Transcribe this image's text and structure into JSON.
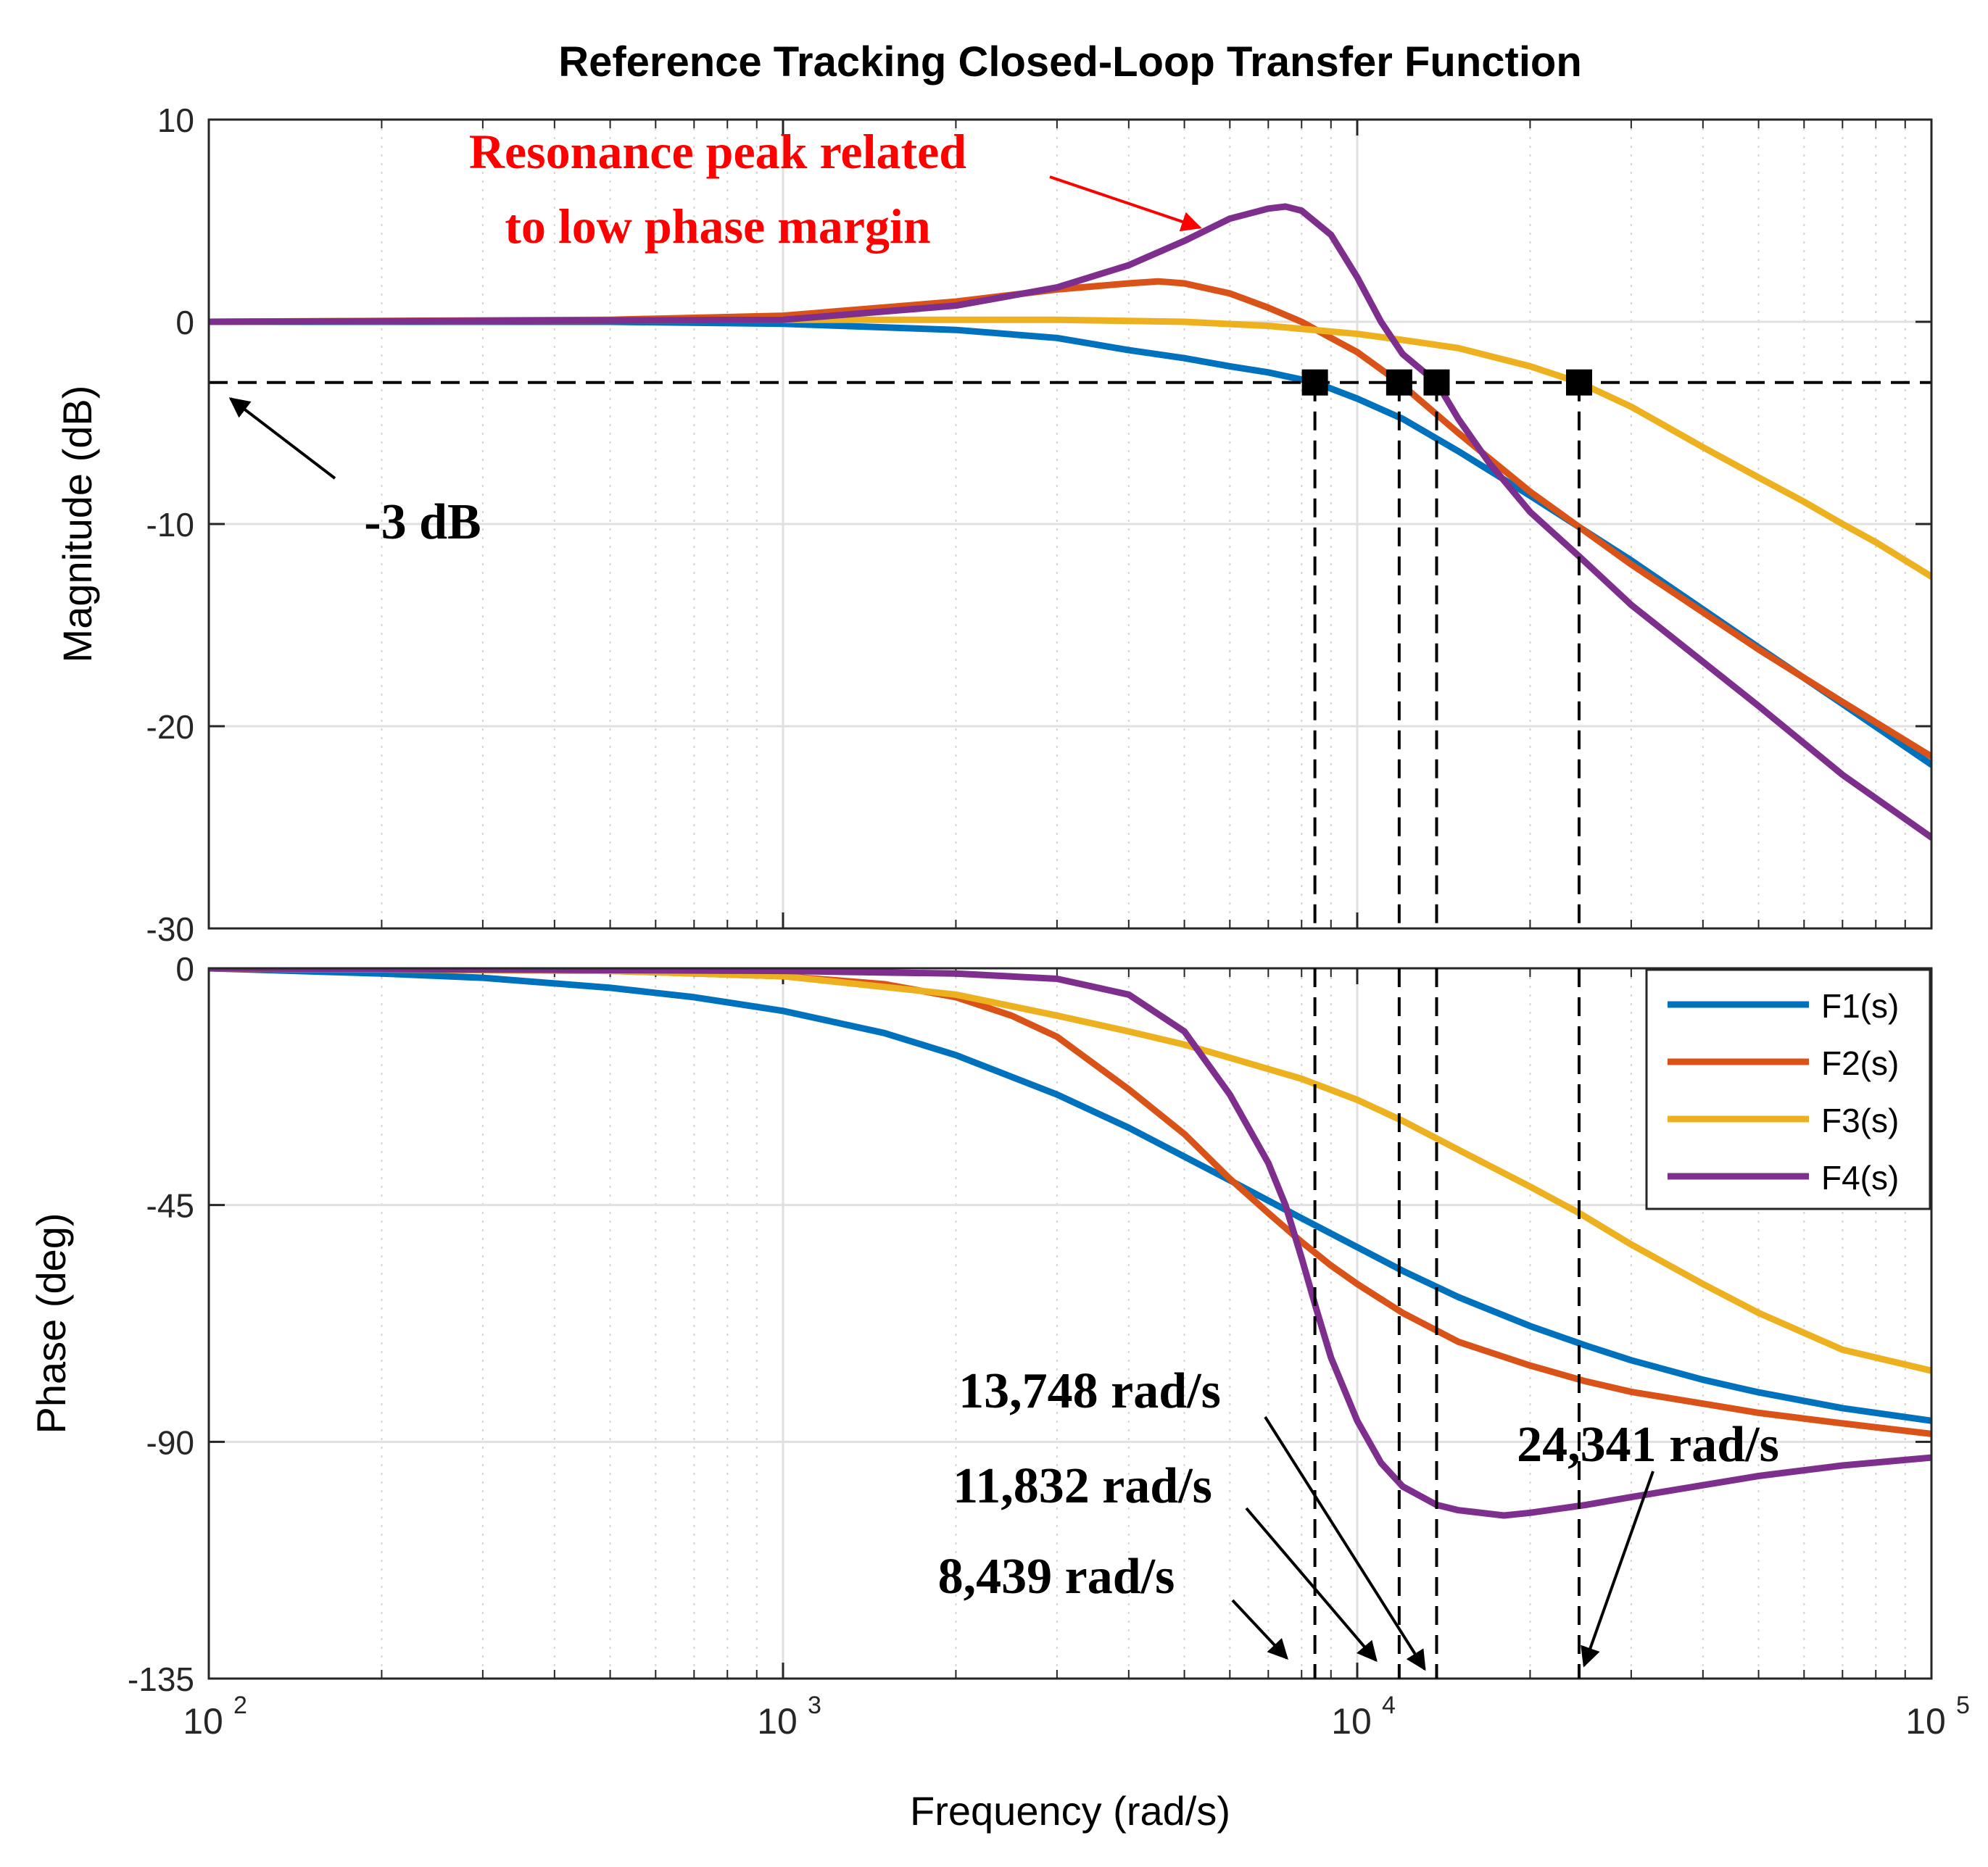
{
  "chart_data": [
    {
      "type": "line",
      "panel": "magnitude",
      "title": "Reference Tracking Closed-Loop Transfer Function",
      "xlabel": "Frequency  (rad/s)",
      "ylabel": "Magnitude (dB)",
      "xscale": "log",
      "xlim": [
        100,
        100000
      ],
      "ylim": [
        -30,
        10
      ],
      "yticks": [
        10,
        0,
        -10,
        -20,
        -30
      ],
      "yticklabels": [
        "10",
        "0",
        "-10",
        "-20",
        "-30"
      ],
      "grid": true,
      "series": [
        {
          "name": "F1(s)",
          "color": "#0072BD",
          "x": [
            100,
            500,
            1000,
            2000,
            3000,
            4000,
            5000,
            6000,
            7000,
            8439,
            10000,
            12000,
            15000,
            20000,
            30000,
            50000,
            70000,
            100000
          ],
          "y": [
            0,
            0,
            -0.1,
            -0.4,
            -0.8,
            -1.4,
            -1.8,
            -2.2,
            -2.5,
            -3.0,
            -3.8,
            -4.8,
            -6.4,
            -8.6,
            -11.8,
            -16.1,
            -18.9,
            -21.9
          ]
        },
        {
          "name": "F2(s)",
          "color": "#D95319",
          "x": [
            100,
            500,
            1000,
            2000,
            3000,
            4000,
            4500,
            5000,
            6000,
            7000,
            8000,
            9000,
            10000,
            11832,
            15000,
            20000,
            30000,
            50000,
            70000,
            100000
          ],
          "y": [
            0,
            0.1,
            0.3,
            1.0,
            1.6,
            1.9,
            2.0,
            1.9,
            1.4,
            0.7,
            0,
            -0.8,
            -1.5,
            -3.0,
            -5.5,
            -8.4,
            -12.0,
            -16.2,
            -18.8,
            -21.5
          ]
        },
        {
          "name": "F3(s)",
          "color": "#EDB120",
          "x": [
            100,
            1000,
            3000,
            5000,
            7000,
            10000,
            12000,
            15000,
            20000,
            24341,
            30000,
            40000,
            50000,
            60000,
            70000,
            80000,
            100000
          ],
          "y": [
            0,
            0.1,
            0.1,
            0,
            -0.2,
            -0.6,
            -0.9,
            -1.3,
            -2.2,
            -3.0,
            -4.2,
            -6.2,
            -7.7,
            -8.9,
            -10.0,
            -10.9,
            -12.6
          ]
        },
        {
          "name": "F4(s)",
          "color": "#7E2F8E",
          "x": [
            100,
            1000,
            2000,
            3000,
            4000,
            5000,
            6000,
            7000,
            7500,
            8000,
            9000,
            10000,
            11000,
            12000,
            13748,
            15000,
            17000,
            20000,
            24341,
            30000,
            50000,
            70000,
            100000
          ],
          "y": [
            0,
            0.1,
            0.8,
            1.7,
            2.8,
            4.0,
            5.1,
            5.6,
            5.7,
            5.5,
            4.3,
            2.2,
            0,
            -1.6,
            -3.0,
            -4.8,
            -7.0,
            -9.4,
            -11.6,
            -14.0,
            -19.0,
            -22.4,
            -25.5
          ]
        }
      ],
      "markers": [
        {
          "x": 8439,
          "y": -3
        },
        {
          "x": 11832,
          "y": -3
        },
        {
          "x": 13748,
          "y": -3
        },
        {
          "x": 24341,
          "y": -3
        }
      ],
      "reference_line": {
        "y": -3,
        "style": "dashed"
      },
      "annotations": {
        "minus3db": "-3 dB",
        "resonance_line1": "Resonance peak related",
        "resonance_line2": "to low phase margin"
      }
    },
    {
      "type": "line",
      "panel": "phase",
      "xlabel": "Frequency  (rad/s)",
      "ylabel": "Phase (deg)",
      "xscale": "log",
      "xlim": [
        100,
        100000
      ],
      "ylim": [
        -135,
        0
      ],
      "yticks": [
        0,
        -45,
        -90,
        -135
      ],
      "yticklabels": [
        "0",
        "-45",
        "-90",
        "-135"
      ],
      "xticks": [
        100,
        1000,
        10000,
        100000
      ],
      "xticklabels": [
        {
          "base": "10",
          "exp": "2"
        },
        {
          "base": "10",
          "exp": "3"
        },
        {
          "base": "10",
          "exp": "4"
        },
        {
          "base": "10",
          "exp": "5"
        }
      ],
      "grid": true,
      "legend": {
        "placement": "top-right",
        "entries": [
          "F1(s)",
          "F2(s)",
          "F3(s)",
          "F4(s)"
        ]
      },
      "series": [
        {
          "name": "F1(s)",
          "color": "#0072BD",
          "x": [
            100,
            200,
            300,
            500,
            700,
            1000,
            1500,
            2000,
            3000,
            4000,
            5000,
            6000,
            8000,
            10000,
            12000,
            15000,
            20000,
            25000,
            30000,
            40000,
            50000,
            70000,
            100000
          ],
          "y": [
            0,
            -1,
            -1.8,
            -3.7,
            -5.5,
            -8.1,
            -12.3,
            -16.5,
            -24.0,
            -30.3,
            -35.8,
            -40.3,
            -47.5,
            -53.0,
            -57.5,
            -62.5,
            -68.0,
            -71.7,
            -74.5,
            -78.2,
            -80.6,
            -83.6,
            -86.0
          ]
        },
        {
          "name": "F2(s)",
          "color": "#D95319",
          "x": [
            100,
            500,
            1000,
            1500,
            2000,
            2500,
            3000,
            4000,
            5000,
            6000,
            7000,
            8000,
            9000,
            10000,
            12000,
            15000,
            20000,
            25000,
            30000,
            50000,
            70000,
            100000
          ],
          "y": [
            0,
            -0.5,
            -1.5,
            -3.0,
            -5.5,
            -9.0,
            -13.0,
            -23.0,
            -31.5,
            -40.0,
            -46.5,
            -52.0,
            -56.5,
            -60.0,
            -65.5,
            -71.0,
            -75.5,
            -78.5,
            -80.5,
            -84.5,
            -86.5,
            -88.5
          ]
        },
        {
          "name": "F3(s)",
          "color": "#EDB120",
          "x": [
            100,
            500,
            1000,
            2000,
            3000,
            4000,
            5000,
            6000,
            8000,
            10000,
            12000,
            15000,
            20000,
            24341,
            30000,
            40000,
            50000,
            70000,
            100000
          ],
          "y": [
            0,
            -0.5,
            -1.5,
            -5.0,
            -9.0,
            -12.0,
            -14.5,
            -17.0,
            -21.0,
            -25.0,
            -29.0,
            -34.5,
            -41.5,
            -46.5,
            -52.5,
            -60.0,
            -65.5,
            -72.5,
            -76.5
          ]
        },
        {
          "name": "F4(s)",
          "color": "#7E2F8E",
          "x": [
            100,
            1000,
            2000,
            3000,
            4000,
            5000,
            6000,
            7000,
            7500,
            8000,
            8500,
            9000,
            10000,
            11000,
            12000,
            13748,
            15000,
            18000,
            20000,
            25000,
            30000,
            50000,
            70000,
            100000
          ],
          "y": [
            0,
            -0.5,
            -1.0,
            -2.0,
            -5.0,
            -12.0,
            -24.0,
            -37.0,
            -45.0,
            -55.0,
            -65.0,
            -74.0,
            -86.0,
            -94.0,
            -98.5,
            -102.0,
            -103.0,
            -104.0,
            -103.5,
            -102.0,
            -100.5,
            -96.5,
            -94.5,
            -93.0
          ]
        }
      ],
      "cutoff_lines": [
        8439,
        11832,
        13748,
        24341
      ],
      "annotations": {
        "f13748": "13,748 rad/s",
        "f11832": "11,832 rad/s",
        "f8439": "8,439 rad/s",
        "f24341": "24,341 rad/s"
      }
    }
  ]
}
